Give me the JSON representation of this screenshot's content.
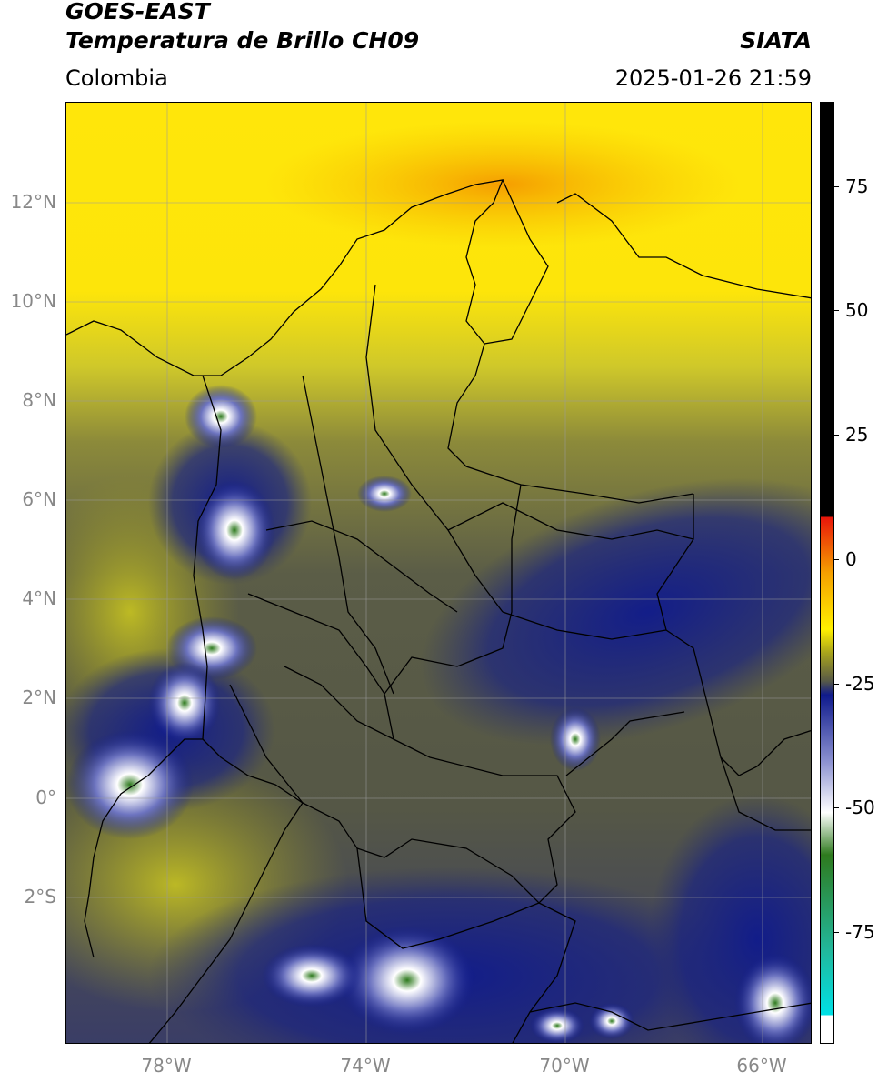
{
  "header": {
    "satellite": "GOES-EAST",
    "product": "Temperatura de Brillo CH09",
    "brand": "SIATA",
    "region": "Colombia",
    "timestamp": "2025-01-26 21:59"
  },
  "map": {
    "lat_range": [
      -4.3,
      14.0
    ],
    "lon_range": [
      -80.0,
      -65.0
    ],
    "lat_ticks": [
      {
        "value": 12,
        "label": "12°N"
      },
      {
        "value": 10,
        "label": "10°N"
      },
      {
        "value": 8,
        "label": "8°N"
      },
      {
        "value": 6,
        "label": "6°N"
      },
      {
        "value": 4,
        "label": "4°N"
      },
      {
        "value": 2,
        "label": "2°N"
      },
      {
        "value": 0,
        "label": "0°"
      },
      {
        "value": -2,
        "label": "2°S"
      }
    ],
    "lon_ticks": [
      {
        "value": -78,
        "label": "78°W"
      },
      {
        "value": -74,
        "label": "74°W"
      },
      {
        "value": -70,
        "label": "70°W"
      },
      {
        "value": -66,
        "label": "66°W"
      }
    ],
    "grid": true
  },
  "colorbar": {
    "range": [
      -95,
      90
    ],
    "ticks": [
      {
        "value": 75,
        "label": "75"
      },
      {
        "value": 50,
        "label": "50"
      },
      {
        "value": 25,
        "label": "25"
      },
      {
        "value": 0,
        "label": "0"
      },
      {
        "value": -25,
        "label": "-25"
      },
      {
        "value": -50,
        "label": "-50"
      },
      {
        "value": -75,
        "label": "-75"
      }
    ],
    "colors": {
      "black": "#000000",
      "red": "#e8160a",
      "orange": "#f5a000",
      "yellow": "#fff000",
      "olive": "#a8a41c",
      "gray_olive": "#585a46",
      "navy": "#0f1a8c",
      "white": "#ffffff",
      "green": "#2e7a1e",
      "teal": "#22b79a",
      "cyan": "#00e0e6"
    }
  }
}
